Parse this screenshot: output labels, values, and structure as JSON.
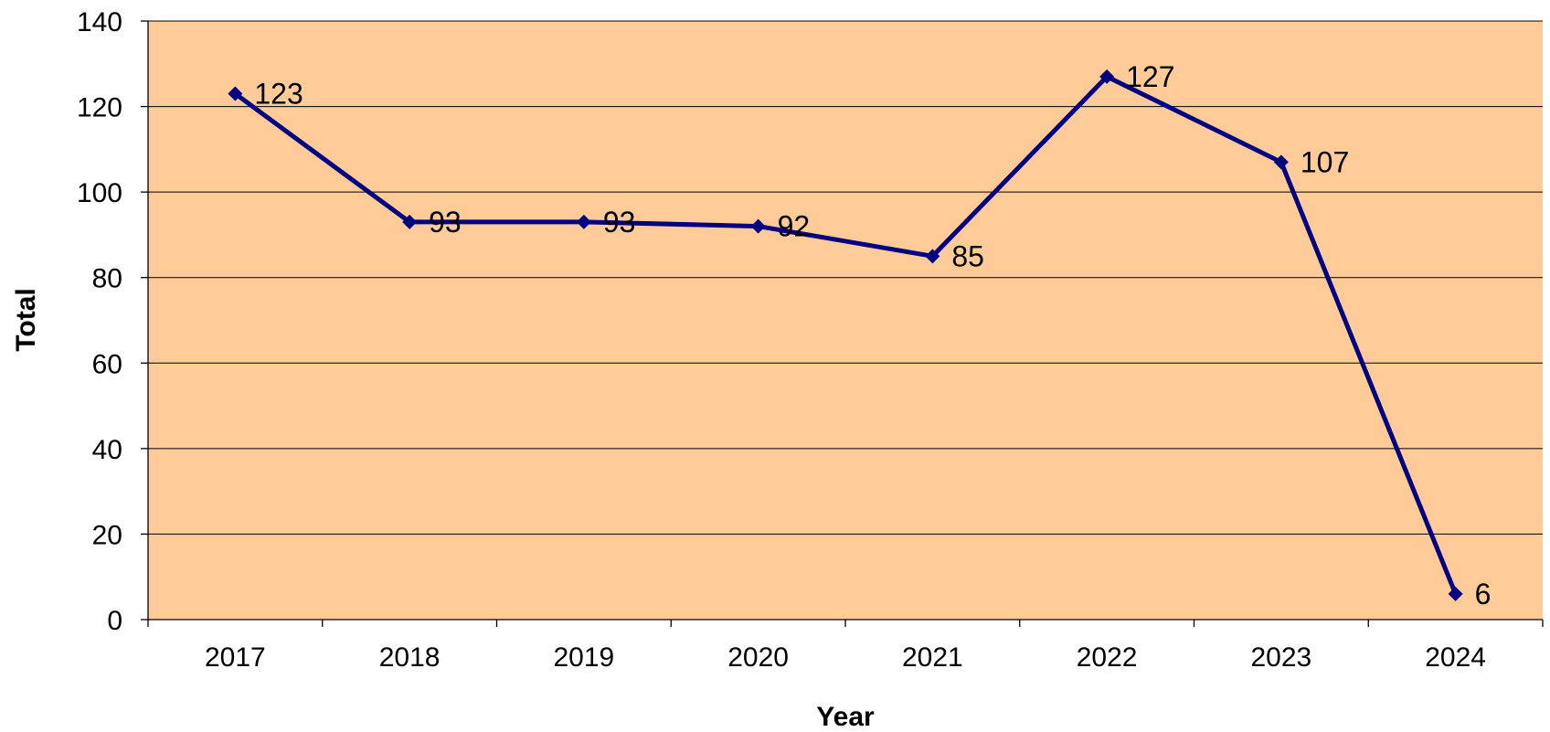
{
  "chart_data": {
    "type": "line",
    "title": "",
    "xlabel": "Year",
    "ylabel": "Total",
    "categories": [
      "2017",
      "2018",
      "2019",
      "2020",
      "2021",
      "2022",
      "2023",
      "2024"
    ],
    "series": [
      {
        "values": [
          123,
          93,
          93,
          92,
          85,
          127,
          107,
          6
        ],
        "color": "#000080",
        "marker": "diamond"
      }
    ],
    "data_labels": [
      "123",
      "93",
      "93",
      "92",
      "85",
      "127",
      "107",
      "6"
    ],
    "ylim": [
      0,
      140
    ],
    "yticks": [
      0,
      20,
      40,
      60,
      80,
      100,
      120,
      140
    ],
    "ytick_labels": [
      "0",
      "20",
      "40",
      "60",
      "80",
      "100",
      "120",
      "140"
    ],
    "grid": "horizontal",
    "legend": "none",
    "plot_background": "#FFCC99",
    "page_background": "#FFFFFF"
  }
}
